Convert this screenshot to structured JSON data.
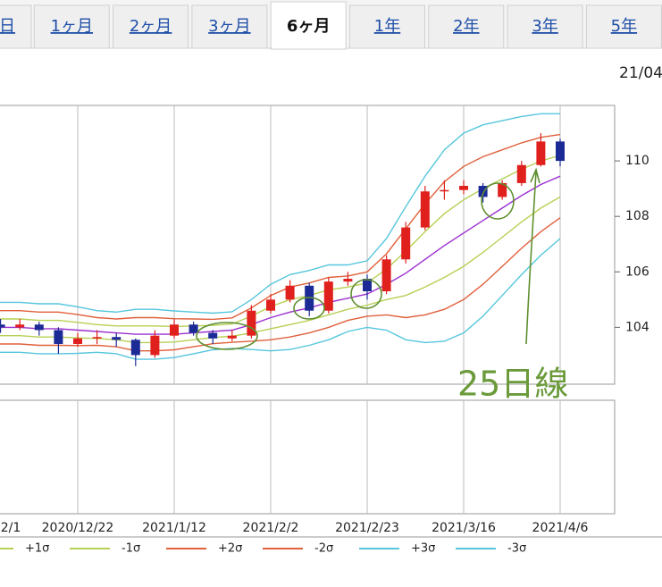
{
  "tabs": [
    "日",
    "1ヶ月",
    "2ヶ月",
    "3ヶ月",
    "6ヶ月",
    "1年",
    "2年",
    "3年",
    "5年"
  ],
  "selected_tab": 4,
  "header_date": "21/04",
  "chart_data": {
    "type": "candlestick",
    "annotation": "25日線",
    "categories": [
      "2/1",
      null,
      null,
      null,
      null,
      "2020/12/22",
      null,
      null,
      null,
      null,
      "2021/1/12",
      null,
      null,
      null,
      null,
      "2021/2/2",
      null,
      null,
      null,
      null,
      "2021/2/23",
      null,
      null,
      null,
      null,
      "2021/3/16",
      null,
      null,
      null,
      null,
      "2021/4/6"
    ],
    "open": [
      104.2,
      104.1,
      104.0,
      104.1,
      103.9,
      103.4,
      103.6,
      103.65,
      103.55,
      103.0,
      103.7,
      104.1,
      103.8,
      103.6,
      103.7,
      104.6,
      105.0,
      105.5,
      104.6,
      105.65,
      105.75,
      105.3,
      106.45,
      107.6,
      108.9,
      108.95,
      109.1,
      108.7,
      109.2,
      109.85,
      110.7
    ],
    "high": [
      104.4,
      104.3,
      104.3,
      104.2,
      104.0,
      103.8,
      103.9,
      103.8,
      103.6,
      103.9,
      104.3,
      104.2,
      103.9,
      103.9,
      104.8,
      105.2,
      105.7,
      105.6,
      105.8,
      106.0,
      105.9,
      106.6,
      107.8,
      109.1,
      109.3,
      109.3,
      109.2,
      109.3,
      110.0,
      111.0,
      110.8
    ],
    "low": [
      103.9,
      103.8,
      103.9,
      103.7,
      103.05,
      103.3,
      103.4,
      103.3,
      102.6,
      102.9,
      103.6,
      103.7,
      103.4,
      103.5,
      103.6,
      104.5,
      104.9,
      104.4,
      104.5,
      105.5,
      105.0,
      105.2,
      106.3,
      107.5,
      108.6,
      108.8,
      108.5,
      108.6,
      109.1,
      109.8,
      109.8
    ],
    "close": [
      104.1,
      104.0,
      104.1,
      103.9,
      103.4,
      103.6,
      103.65,
      103.55,
      103.0,
      103.7,
      104.1,
      103.8,
      103.6,
      103.7,
      104.6,
      105.0,
      105.5,
      104.6,
      105.65,
      105.75,
      105.3,
      106.45,
      107.6,
      108.9,
      108.95,
      109.1,
      108.7,
      109.2,
      109.85,
      110.7,
      110.0
    ],
    "up_color": "#e0201c",
    "down_color": "#1c2a96",
    "series": [
      {
        "color": "#9b30d0",
        "values": [
          104.05,
          104.0,
          104.0,
          103.95,
          103.95,
          103.9,
          103.85,
          103.8,
          103.75,
          103.75,
          103.75,
          103.8,
          103.85,
          103.9,
          104.1,
          104.35,
          104.55,
          104.7,
          104.9,
          105.05,
          105.2,
          105.55,
          105.95,
          106.45,
          106.95,
          107.4,
          107.85,
          108.3,
          108.75,
          109.15,
          109.45
        ]
      },
      {
        "name": "+1σ",
        "color": "#b6d054",
        "values": [
          104.35,
          104.3,
          104.3,
          104.25,
          104.25,
          104.18,
          104.1,
          104.05,
          104.05,
          104.05,
          104.03,
          104.05,
          104.07,
          104.12,
          104.4,
          104.75,
          105.0,
          105.15,
          105.35,
          105.45,
          105.6,
          106.1,
          106.75,
          107.45,
          108.1,
          108.6,
          109.0,
          109.35,
          109.7,
          110.0,
          110.2
        ]
      },
      {
        "name": "-1σ",
        "color": "#b6d054",
        "values": [
          103.75,
          103.7,
          103.7,
          103.65,
          103.65,
          103.62,
          103.6,
          103.55,
          103.45,
          103.45,
          103.47,
          103.55,
          103.63,
          103.68,
          103.8,
          103.95,
          104.1,
          104.25,
          104.45,
          104.65,
          104.8,
          105.0,
          105.15,
          105.45,
          105.8,
          106.2,
          106.7,
          107.25,
          107.8,
          108.3,
          108.7
        ]
      },
      {
        "name": "+2σ",
        "color": "#e0603c",
        "values": [
          104.65,
          104.6,
          104.6,
          104.55,
          104.55,
          104.46,
          104.35,
          104.3,
          104.35,
          104.35,
          104.31,
          104.3,
          104.29,
          104.34,
          104.7,
          105.15,
          105.45,
          105.6,
          105.8,
          105.85,
          106.0,
          106.65,
          107.55,
          108.45,
          109.25,
          109.8,
          110.15,
          110.4,
          110.65,
          110.85,
          110.95
        ]
      },
      {
        "name": "-2σ",
        "color": "#e0603c",
        "values": [
          103.45,
          103.4,
          103.4,
          103.35,
          103.35,
          103.34,
          103.35,
          103.3,
          103.15,
          103.15,
          103.19,
          103.3,
          103.41,
          103.46,
          103.5,
          103.55,
          103.65,
          103.8,
          104.0,
          104.25,
          104.4,
          104.45,
          104.35,
          104.45,
          104.65,
          105.0,
          105.55,
          106.2,
          106.85,
          107.45,
          107.95
        ]
      },
      {
        "name": "+3σ",
        "color": "#56c6dc",
        "values": [
          104.95,
          104.9,
          104.9,
          104.85,
          104.85,
          104.74,
          104.6,
          104.55,
          104.65,
          104.65,
          104.59,
          104.55,
          104.51,
          104.56,
          105.0,
          105.55,
          105.9,
          106.05,
          106.25,
          106.25,
          106.4,
          107.2,
          108.35,
          109.45,
          110.4,
          111.0,
          111.3,
          111.45,
          111.6,
          111.7,
          111.7
        ]
      },
      {
        "name": "-3σ",
        "color": "#56c6dc",
        "values": [
          103.15,
          103.1,
          103.1,
          103.05,
          103.05,
          103.06,
          103.1,
          103.05,
          102.85,
          102.85,
          102.91,
          103.05,
          103.19,
          103.24,
          103.2,
          103.15,
          103.2,
          103.35,
          103.55,
          103.85,
          104.0,
          103.9,
          103.55,
          103.45,
          103.5,
          103.8,
          104.4,
          105.15,
          105.9,
          106.6,
          107.2
        ]
      }
    ],
    "ylim": [
      101.95,
      112.0
    ],
    "yticks": [
      104,
      106,
      108,
      110
    ]
  }
}
